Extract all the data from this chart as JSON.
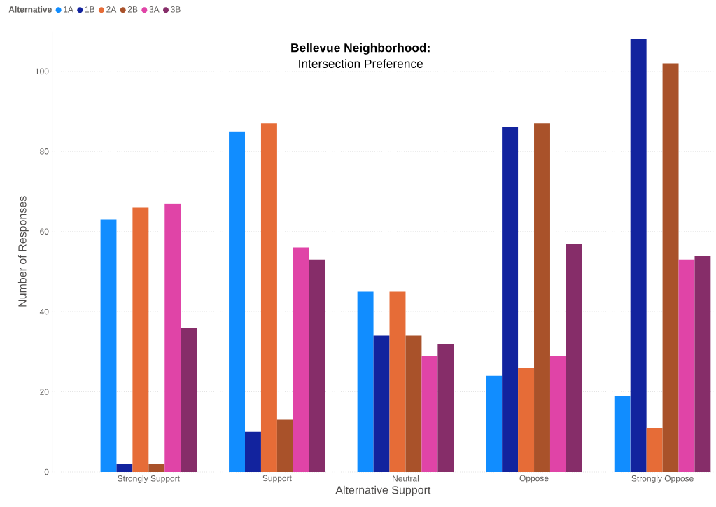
{
  "chart_data": {
    "type": "bar",
    "title": "Bellevue Neighborhood:",
    "subtitle": "Intersection Preference",
    "xlabel": "Alternative Support",
    "ylabel": "Number of Responses",
    "legend_title": "Alternative",
    "categories": [
      "Strongly Support",
      "Support",
      "Neutral",
      "Oppose",
      "Strongly Oppose"
    ],
    "series": [
      {
        "name": "1A",
        "color": "#118dff",
        "values": [
          63,
          85,
          45,
          24,
          19
        ]
      },
      {
        "name": "1B",
        "color": "#12239e",
        "values": [
          2,
          10,
          34,
          86,
          108
        ]
      },
      {
        "name": "2A",
        "color": "#e66c37",
        "values": [
          66,
          87,
          45,
          26,
          11
        ]
      },
      {
        "name": "2B",
        "color": "#a9522a",
        "values": [
          2,
          13,
          34,
          87,
          102
        ]
      },
      {
        "name": "3A",
        "color": "#e044a7",
        "values": [
          67,
          56,
          29,
          29,
          53
        ]
      },
      {
        "name": "3B",
        "color": "#862d69",
        "values": [
          36,
          53,
          32,
          57,
          54
        ]
      }
    ],
    "ylim": [
      0,
      110
    ],
    "yticks": [
      0,
      20,
      40,
      60,
      80,
      100
    ],
    "grid": "y",
    "legend": "top left"
  }
}
